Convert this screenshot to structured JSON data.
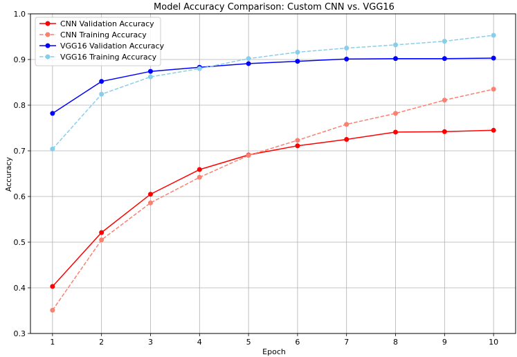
{
  "chart_data": {
    "type": "line",
    "title": "Model Accuracy Comparison: Custom CNN vs. VGG16",
    "xlabel": "Epoch",
    "ylabel": "Accuracy",
    "x": [
      1,
      2,
      3,
      4,
      5,
      6,
      7,
      8,
      9,
      10
    ],
    "xlim": [
      0.55,
      10.45
    ],
    "ylim": [
      0.3,
      1.0
    ],
    "x_ticks": [
      "1",
      "2",
      "3",
      "4",
      "5",
      "6",
      "7",
      "8",
      "9",
      "10"
    ],
    "y_ticks": [
      "0.3",
      "0.4",
      "0.5",
      "0.6",
      "0.7",
      "0.8",
      "0.9",
      "1.0"
    ],
    "grid": true,
    "legend_position": "top-left",
    "series": [
      {
        "name": "CNN Validation Accuracy",
        "color": "#ff0000",
        "line_style": "solid",
        "marker": "circle",
        "values": [
          0.403,
          0.521,
          0.605,
          0.659,
          0.691,
          0.711,
          0.725,
          0.741,
          0.742,
          0.745
        ]
      },
      {
        "name": "CNN Training Accuracy",
        "color": "#fa8072",
        "line_style": "dashed",
        "marker": "circle",
        "values": [
          0.351,
          0.505,
          0.586,
          0.642,
          0.69,
          0.723,
          0.758,
          0.782,
          0.811,
          0.835
        ]
      },
      {
        "name": "VGG16 Validation Accuracy",
        "color": "#0000ff",
        "line_style": "solid",
        "marker": "circle",
        "values": [
          0.782,
          0.852,
          0.874,
          0.883,
          0.891,
          0.896,
          0.901,
          0.902,
          0.902,
          0.903
        ]
      },
      {
        "name": "VGG16 Training Accuracy",
        "color": "#87ceeb",
        "line_style": "dashed",
        "marker": "circle",
        "values": [
          0.704,
          0.824,
          0.862,
          0.88,
          0.902,
          0.916,
          0.925,
          0.932,
          0.94,
          0.953
        ]
      }
    ]
  }
}
